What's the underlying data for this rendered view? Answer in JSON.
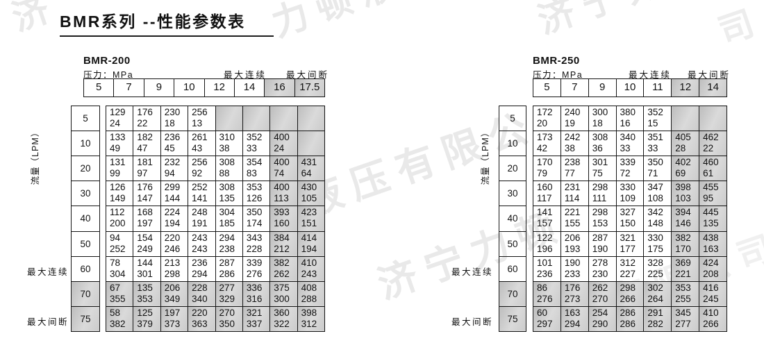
{
  "title": "BMR系列 --性能参数表",
  "watermarks": [
    "济",
    "力顿液压",
    "济宁力",
    "液压有限公",
    "济宁力顿",
    "有限公司",
    "司"
  ],
  "tables": [
    {
      "model": "BMR-200",
      "pressure_label": "压力：MPa",
      "max_continuous_label": "最大连续",
      "max_intermittent_label": "最大间断",
      "flow_label": "流量（LPM）",
      "pressures": [
        "5",
        "7",
        "9",
        "10",
        "12",
        "14",
        "16",
        "17.5"
      ],
      "gray_pressure_from": 6,
      "flows": [
        "5",
        "10",
        "20",
        "30",
        "40",
        "50",
        "60",
        "70",
        "75"
      ],
      "gray_flow_rows": [
        7,
        8
      ],
      "rows": [
        [
          [
            "129",
            "24"
          ],
          [
            "176",
            "22"
          ],
          [
            "230",
            "18"
          ],
          [
            "256",
            "13"
          ],
          null,
          null,
          null,
          null
        ],
        [
          [
            "133",
            "49"
          ],
          [
            "182",
            "47"
          ],
          [
            "236",
            "45"
          ],
          [
            "261",
            "43"
          ],
          [
            "310",
            "38"
          ],
          [
            "352",
            "33"
          ],
          [
            "400",
            "24"
          ],
          null
        ],
        [
          [
            "131",
            "99"
          ],
          [
            "181",
            "97"
          ],
          [
            "232",
            "94"
          ],
          [
            "256",
            "92"
          ],
          [
            "308",
            "88"
          ],
          [
            "354",
            "83"
          ],
          [
            "400",
            "74"
          ],
          [
            "431",
            "64"
          ]
        ],
        [
          [
            "126",
            "149"
          ],
          [
            "176",
            "147"
          ],
          [
            "299",
            "144"
          ],
          [
            "252",
            "141"
          ],
          [
            "308",
            "135"
          ],
          [
            "353",
            "126"
          ],
          [
            "400",
            "113"
          ],
          [
            "430",
            "105"
          ]
        ],
        [
          [
            "112",
            "200"
          ],
          [
            "168",
            "197"
          ],
          [
            "224",
            "194"
          ],
          [
            "248",
            "191"
          ],
          [
            "304",
            "185"
          ],
          [
            "350",
            "174"
          ],
          [
            "393",
            "160"
          ],
          [
            "423",
            "151"
          ]
        ],
        [
          [
            "94",
            "252"
          ],
          [
            "154",
            "249"
          ],
          [
            "220",
            "246"
          ],
          [
            "243",
            "243"
          ],
          [
            "294",
            "238"
          ],
          [
            "343",
            "228"
          ],
          [
            "384",
            "212"
          ],
          [
            "414",
            "194"
          ]
        ],
        [
          [
            "78",
            "304"
          ],
          [
            "144",
            "301"
          ],
          [
            "213",
            "298"
          ],
          [
            "236",
            "294"
          ],
          [
            "287",
            "286"
          ],
          [
            "339",
            "276"
          ],
          [
            "382",
            "262"
          ],
          [
            "410",
            "243"
          ]
        ],
        [
          [
            "67",
            "355"
          ],
          [
            "135",
            "353"
          ],
          [
            "206",
            "349"
          ],
          [
            "228",
            "340"
          ],
          [
            "277",
            "329"
          ],
          [
            "336",
            "316"
          ],
          [
            "375",
            "300"
          ],
          [
            "408",
            "288"
          ]
        ],
        [
          [
            "58",
            "382"
          ],
          [
            "125",
            "379"
          ],
          [
            "197",
            "373"
          ],
          [
            "220",
            "363"
          ],
          [
            "270",
            "350"
          ],
          [
            "321",
            "337"
          ],
          [
            "360",
            "322"
          ],
          [
            "398",
            "312"
          ]
        ]
      ]
    },
    {
      "model": "BMR-250",
      "pressure_label": "压力：MPa",
      "max_continuous_label": "最大连续",
      "max_intermittent_label": "最大间断",
      "flow_label": "流量（LPM）",
      "pressures": [
        "5",
        "7",
        "9",
        "10",
        "11",
        "12",
        "14"
      ],
      "gray_pressure_from": 5,
      "flows": [
        "5",
        "10",
        "20",
        "30",
        "40",
        "50",
        "60",
        "70",
        "75"
      ],
      "gray_flow_rows": [
        7,
        8
      ],
      "rows": [
        [
          [
            "172",
            "20"
          ],
          [
            "240",
            "19"
          ],
          [
            "300",
            "18"
          ],
          [
            "380",
            "16"
          ],
          [
            "352",
            "15"
          ],
          null,
          null
        ],
        [
          [
            "173",
            "42"
          ],
          [
            "242",
            "38"
          ],
          [
            "308",
            "36"
          ],
          [
            "340",
            "33"
          ],
          [
            "351",
            "33"
          ],
          [
            "405",
            "28"
          ],
          [
            "462",
            "22"
          ]
        ],
        [
          [
            "170",
            "79"
          ],
          [
            "238",
            "77"
          ],
          [
            "301",
            "75"
          ],
          [
            "339",
            "72"
          ],
          [
            "350",
            "71"
          ],
          [
            "402",
            "69"
          ],
          [
            "460",
            "61"
          ]
        ],
        [
          [
            "160",
            "117"
          ],
          [
            "231",
            "114"
          ],
          [
            "298",
            "111"
          ],
          [
            "330",
            "109"
          ],
          [
            "347",
            "108"
          ],
          [
            "398",
            "103"
          ],
          [
            "455",
            "95"
          ]
        ],
        [
          [
            "141",
            "157"
          ],
          [
            "221",
            "155"
          ],
          [
            "298",
            "153"
          ],
          [
            "327",
            "150"
          ],
          [
            "342",
            "148"
          ],
          [
            "394",
            "146"
          ],
          [
            "445",
            "135"
          ]
        ],
        [
          [
            "122",
            "196"
          ],
          [
            "206",
            "193"
          ],
          [
            "287",
            "190"
          ],
          [
            "321",
            "177"
          ],
          [
            "330",
            "175"
          ],
          [
            "382",
            "170"
          ],
          [
            "438",
            "163"
          ]
        ],
        [
          [
            "101",
            "236"
          ],
          [
            "190",
            "233"
          ],
          [
            "278",
            "230"
          ],
          [
            "312",
            "227"
          ],
          [
            "328",
            "225"
          ],
          [
            "369",
            "221"
          ],
          [
            "424",
            "208"
          ]
        ],
        [
          [
            "86",
            "276"
          ],
          [
            "176",
            "273"
          ],
          [
            "262",
            "270"
          ],
          [
            "298",
            "266"
          ],
          [
            "302",
            "264"
          ],
          [
            "353",
            "255"
          ],
          [
            "416",
            "245"
          ]
        ],
        [
          [
            "60",
            "297"
          ],
          [
            "163",
            "294"
          ],
          [
            "254",
            "290"
          ],
          [
            "286",
            "286"
          ],
          [
            "291",
            "282"
          ],
          [
            "345",
            "277"
          ],
          [
            "410",
            "266"
          ]
        ]
      ]
    }
  ]
}
